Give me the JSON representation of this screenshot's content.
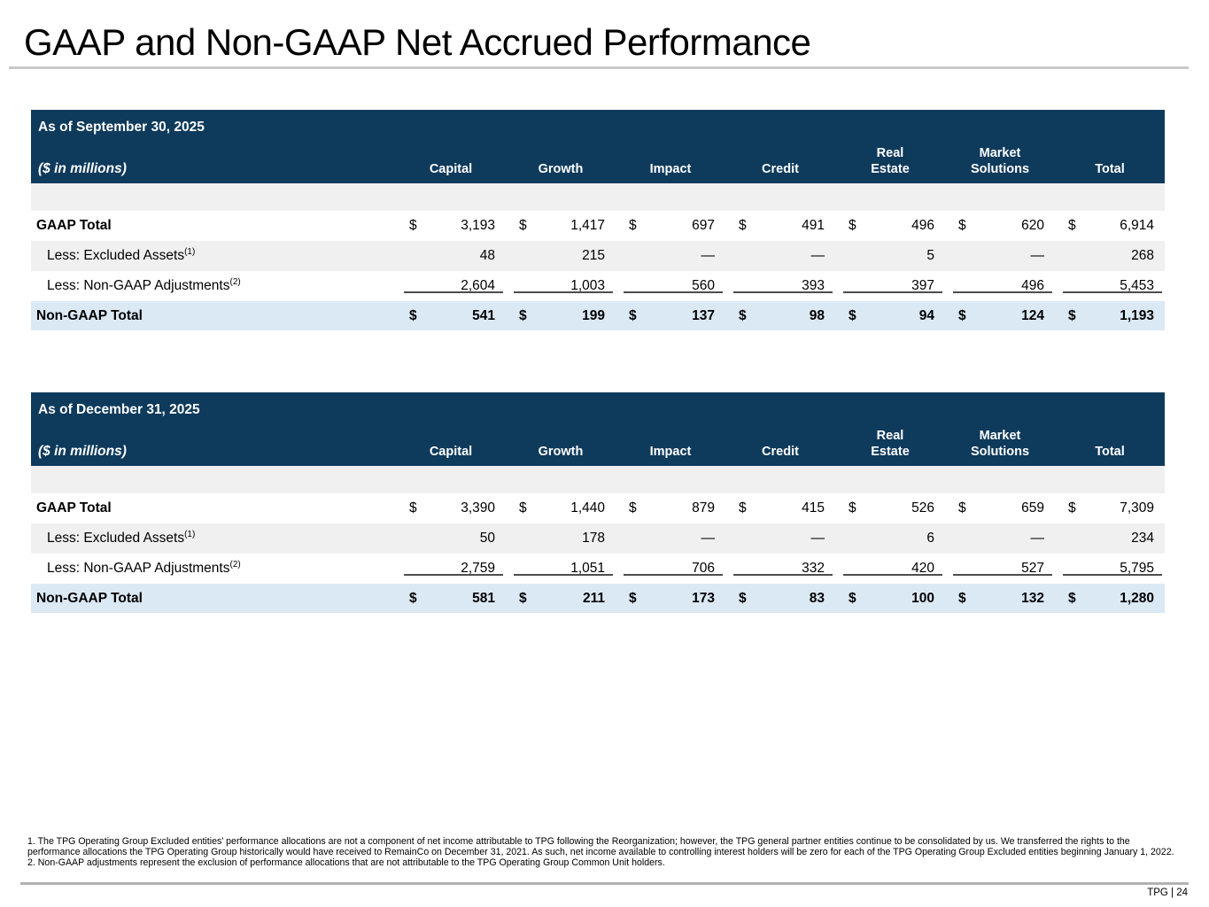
{
  "slide": {
    "title": "GAAP and Non-GAAP Net Accrued Performance",
    "footer_text": "TPG | 24"
  },
  "columns": [
    "Capital",
    "Growth",
    "Impact",
    "Credit",
    "Real\nEstate",
    "Market\nSolutions",
    "Total"
  ],
  "tables": [
    {
      "as_of": "As of September 30, 2025",
      "units_label": "($ in millions)",
      "rows": [
        {
          "label": "GAAP Total",
          "sup": "",
          "dollar_sign": "$",
          "values": [
            "3,193",
            "1,417",
            "697",
            "491",
            "496",
            "620",
            "6,914"
          ]
        },
        {
          "label": "Less: Excluded Assets",
          "sup": "(1)",
          "dollar_sign": "",
          "values": [
            "48",
            "215",
            "—",
            "—",
            "5",
            "—",
            "268"
          ]
        },
        {
          "label": "Less: Non-GAAP Adjustments",
          "sup": "(2)",
          "dollar_sign": "",
          "values": [
            "2,604",
            "1,003",
            "560",
            "393",
            "397",
            "496",
            "5,453"
          ]
        },
        {
          "label": "Non-GAAP Total",
          "sup": "",
          "dollar_sign": "$",
          "values": [
            "541",
            "199",
            "137",
            "98",
            "94",
            "124",
            "1,193"
          ]
        }
      ]
    },
    {
      "as_of": "As of December 31, 2025",
      "units_label": "($ in millions)",
      "rows": [
        {
          "label": "GAAP Total",
          "sup": "",
          "dollar_sign": "$",
          "values": [
            "3,390",
            "1,440",
            "879",
            "415",
            "526",
            "659",
            "7,309"
          ]
        },
        {
          "label": "Less: Excluded Assets",
          "sup": "(1)",
          "dollar_sign": "",
          "values": [
            "50",
            "178",
            "—",
            "—",
            "6",
            "—",
            "234"
          ]
        },
        {
          "label": "Less: Non-GAAP Adjustments",
          "sup": "(2)",
          "dollar_sign": "",
          "values": [
            "2,759",
            "1,051",
            "706",
            "332",
            "420",
            "527",
            "5,795"
          ]
        },
        {
          "label": "Non-GAAP Total",
          "sup": "",
          "dollar_sign": "$",
          "values": [
            "581",
            "211",
            "173",
            "83",
            "100",
            "132",
            "1,280"
          ]
        }
      ]
    }
  ],
  "footnotes": [
    "1. The TPG Operating Group Excluded entities’ performance allocations are not a component of net income attributable to TPG following the Reorganization; however, the TPG general partner entities continue to be consolidated by us. We transferred the rights to the performance allocations the TPG Operating Group historically would have received to RemainCo on December 31, 2021. As such, net income available to controlling interest holders will be zero for each of the TPG Operating Group Excluded entities beginning January 1, 2022.",
    "2. Non-GAAP adjustments represent the exclusion of performance allocations that are not attributable to the TPG Operating Group Common Unit holders."
  ]
}
